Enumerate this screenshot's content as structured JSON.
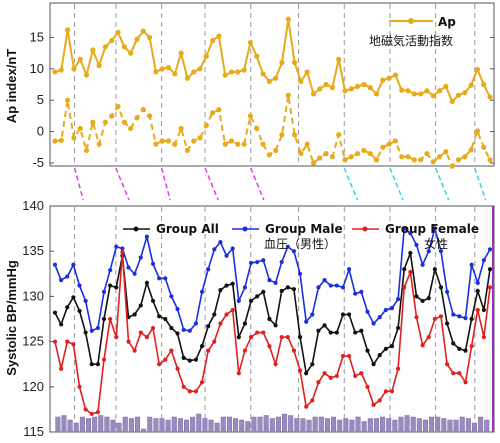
{
  "chart_data": [
    {
      "type": "line",
      "ylabel": "Ap index/nT",
      "ylim": [
        -5,
        20
      ],
      "yticks": [
        -5,
        0,
        5,
        10,
        15
      ],
      "grid": false,
      "legend": {
        "placement": "top-right",
        "label": "Ap",
        "sublabel": "地磁気活動指数"
      },
      "color": "#E8A91A",
      "series": [
        {
          "name": "Ap",
          "style": "solid",
          "values": [
            9.5,
            9.8,
            16.2,
            10,
            11.5,
            9,
            13,
            10.5,
            13.5,
            14.5,
            15.8,
            13.5,
            12.5,
            14.7,
            16,
            15,
            9.5,
            10,
            10.2,
            9.2,
            12.5,
            8.5,
            9.5,
            10,
            12,
            14.5,
            15.2,
            9,
            9.5,
            9.5,
            9.8,
            14.2,
            12,
            9.2,
            8,
            8.5,
            11,
            17.9,
            11,
            8,
            9.5,
            6,
            6.8,
            7.5,
            7,
            11.5,
            6.5,
            6.8,
            7.2,
            7.5,
            7,
            6,
            8.2,
            8.5,
            9,
            6.6,
            6.5,
            6,
            6,
            6.5,
            5.7,
            6.5,
            7.2,
            4.8,
            5.8,
            6.2,
            7.4,
            9.9,
            7.5,
            5.5
          ]
        },
        {
          "style": "dashed",
          "values": [
            -1.5,
            -1.4,
            5,
            -1,
            0.5,
            -3,
            1.5,
            -2,
            1.5,
            2.5,
            4,
            1.5,
            0.5,
            2.2,
            3.5,
            2.5,
            -2,
            -1.5,
            -1.5,
            -2,
            0.5,
            -3,
            -1.5,
            -1,
            1,
            3,
            3.5,
            -2,
            -1.5,
            -2,
            -2,
            2.5,
            0.5,
            -2,
            -3.7,
            -3,
            -0.5,
            5.8,
            -0.5,
            -3.5,
            -2,
            -5,
            -4.2,
            -3.5,
            -4,
            -0.5,
            -4.5,
            -4,
            -3.5,
            -3,
            -3.5,
            -4.5,
            -2.5,
            -2,
            -1.5,
            -4,
            -4,
            -4.5,
            -4.5,
            -3.5,
            -4.8,
            -4,
            -3.2,
            -5.5,
            -4.5,
            -4,
            -2.9,
            0.1,
            -2.5,
            -4.5
          ]
        }
      ]
    },
    {
      "type": "line",
      "ylabel": "Systolic BP/mmHg",
      "ylim": [
        115,
        140
      ],
      "yticks": [
        115,
        120,
        125,
        130,
        135,
        140
      ],
      "grid": false,
      "series": [
        {
          "name": "Group All",
          "color": "#111111",
          "values": [
            128.2,
            126.9,
            128.8,
            129.9,
            128.4,
            126,
            122.5,
            122.5,
            127.5,
            131.2,
            131,
            134.5,
            127.7,
            128,
            129,
            131.5,
            129.5,
            127.8,
            127.5,
            126.5,
            125.9,
            123.2,
            122.9,
            123,
            124.5,
            126.7,
            128,
            130.7,
            131.2,
            131.4,
            125.5,
            127,
            129.5,
            130,
            130.5,
            127.5,
            126.8,
            130.6,
            131,
            130.8,
            125.5,
            121.5,
            122.5,
            126.2,
            126.8,
            126,
            126,
            128,
            128,
            126,
            126.2,
            124,
            122.5,
            123.5,
            124.2,
            124.5,
            126.5,
            133,
            134.8,
            130,
            129.5,
            129.8,
            133,
            131,
            127,
            124.8,
            124.2,
            124,
            127.5,
            130.6,
            128.5,
            133
          ]
        },
        {
          "name": "Group Male",
          "color": "#1a2fe0",
          "values": [
            133.5,
            131.8,
            132.2,
            133.5,
            131.2,
            129.5,
            126.2,
            126.5,
            130.5,
            132.9,
            135.5,
            135.3,
            133.2,
            132.5,
            134.3,
            136.6,
            133.6,
            132,
            132,
            130,
            128.6,
            126.3,
            126.2,
            127,
            130.5,
            133,
            135.2,
            136,
            134.5,
            135.3,
            129.5,
            131,
            133.7,
            133.8,
            134,
            131.8,
            131.5,
            133.8,
            135.5,
            135,
            132.5,
            127.2,
            128,
            131,
            131.8,
            131.2,
            131.2,
            131,
            133,
            130.3,
            130.5,
            128.3,
            127,
            127.7,
            128.5,
            128.7,
            129.7,
            137.5,
            137,
            135.7,
            133.5,
            135,
            137.5,
            135,
            130.5,
            128,
            127.8,
            127.6,
            133.5,
            131.5,
            134,
            135.2
          ]
        },
        {
          "name": "Group Female",
          "color": "#e02020",
          "values": [
            125,
            122,
            125,
            124.7,
            120,
            117.5,
            117,
            117.2,
            123,
            127.5,
            125.5,
            134.9,
            125,
            124,
            126,
            125.5,
            126.5,
            122.5,
            123,
            124,
            122,
            120,
            119.5,
            119.5,
            120.5,
            124,
            125,
            127,
            128,
            128.5,
            121.5,
            124,
            125.5,
            126,
            126,
            124.5,
            122.5,
            125.5,
            125.5,
            124,
            121.8,
            117.8,
            118.5,
            120.5,
            121.5,
            121,
            121.2,
            123.4,
            123.4,
            121.2,
            121.5,
            120,
            118,
            118.5,
            119.5,
            119.5,
            122,
            131,
            132.7,
            127.7,
            124.6,
            125.5,
            127.5,
            127.8,
            122.5,
            121.5,
            121.5,
            120.5,
            124.5,
            128.5,
            125.5,
            131
          ]
        }
      ],
      "legend": {
        "placement": "top",
        "items": [
          "Group All",
          "Group Male",
          "Group Female"
        ],
        "notes": [
          "血圧（男性）",
          "女性"
        ]
      },
      "bars": {
        "color": "#9a8bbf",
        "values": [
          0.5,
          0.55,
          0.4,
          0.3,
          0.5,
          0.45,
          0.5,
          0.55,
          0.5,
          0.4,
          0.3,
          0.5,
          0.45,
          0.5,
          0.1,
          0.5,
          0.45,
          0.45,
          0.4,
          0.5,
          0.45,
          0.4,
          0.5,
          0.6,
          0.45,
          0.4,
          0.3,
          0.5,
          0.5,
          0.45,
          0.4,
          0.35,
          0.5,
          0.5,
          0.55,
          0.45,
          0.5,
          0.6,
          0.55,
          0.45,
          0.45,
          0.4,
          0.5,
          0.5,
          0.45,
          0.5,
          0.4,
          0.45,
          0.4,
          0.5,
          0.35,
          0.45,
          0.45,
          0.5,
          0.45,
          0.4,
          0.5,
          0.55,
          0.5,
          0.45,
          0.4,
          0.5,
          0.5,
          0.45,
          0.4,
          0.4,
          0.5,
          0.45,
          0.3,
          0.5,
          0.4
        ]
      }
    }
  ],
  "top_ticks": [
    "-5",
    "0",
    "5",
    "10",
    "15"
  ],
  "bottom_ticks": [
    "115",
    "120",
    "125",
    "130",
    "135",
    "140"
  ],
  "top_ylabel": "Ap index/nT",
  "bottom_ylabel": "Systolic BP/mmHg",
  "legend_top": {
    "label": "Ap",
    "sublabel": "地磁気活動指数"
  },
  "legend_bottom": {
    "all": "Group All",
    "male": "Group Male",
    "female": "Group Female",
    "male_note": "血圧（男性）",
    "female_note": "女性"
  },
  "connectors": {
    "magenta": "#e040e0",
    "cyan": "#30d8e0"
  }
}
